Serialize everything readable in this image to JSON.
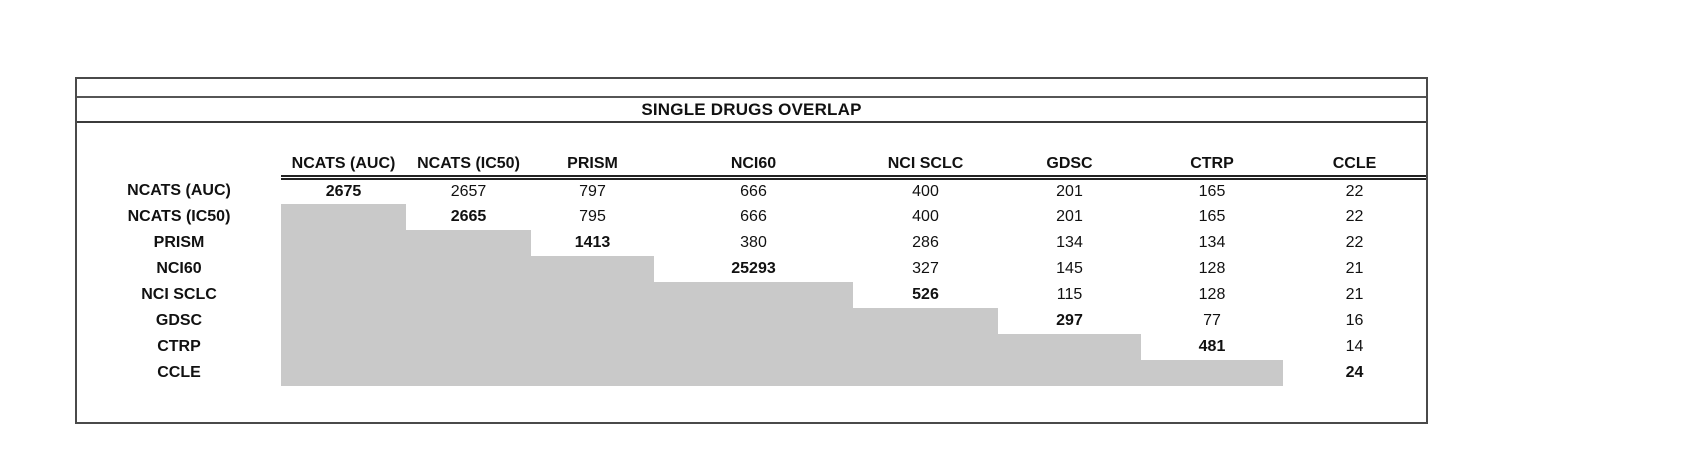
{
  "table": {
    "title": "SINGLE DRUGS OVERLAP",
    "columns": [
      "NCATS (AUC)",
      "NCATS (IC50)",
      "PRISM",
      "NCI60",
      "NCI SCLC",
      "GDSC",
      "CTRP",
      "CCLE"
    ],
    "rows": [
      "NCATS (AUC)",
      "NCATS (IC50)",
      "PRISM",
      "NCI60",
      "NCI SCLC",
      "GDSC",
      "CTRP",
      "CCLE"
    ],
    "matrix": [
      [
        2675,
        2657,
        797,
        666,
        400,
        201,
        165,
        22
      ],
      [
        null,
        2665,
        795,
        666,
        400,
        201,
        165,
        22
      ],
      [
        null,
        null,
        1413,
        380,
        286,
        134,
        134,
        22
      ],
      [
        null,
        null,
        null,
        25293,
        327,
        145,
        128,
        21
      ],
      [
        null,
        null,
        null,
        null,
        526,
        115,
        128,
        21
      ],
      [
        null,
        null,
        null,
        null,
        null,
        297,
        77,
        16
      ],
      [
        null,
        null,
        null,
        null,
        null,
        null,
        481,
        14
      ],
      [
        null,
        null,
        null,
        null,
        null,
        null,
        null,
        24
      ]
    ],
    "colors": {
      "shaded_cell": "#c9c9c9",
      "frame_border": "#4a4a4a",
      "text": "#111111"
    }
  },
  "chart_data": {
    "type": "table",
    "title": "SINGLE DRUGS OVERLAP",
    "columns": [
      "NCATS (AUC)",
      "NCATS (IC50)",
      "PRISM",
      "NCI60",
      "NCI SCLC",
      "GDSC",
      "CTRP",
      "CCLE"
    ],
    "rows": [
      "NCATS (AUC)",
      "NCATS (IC50)",
      "PRISM",
      "NCI60",
      "NCI SCLC",
      "GDSC",
      "CTRP",
      "CCLE"
    ],
    "values": [
      [
        2675,
        2657,
        797,
        666,
        400,
        201,
        165,
        22
      ],
      [
        null,
        2665,
        795,
        666,
        400,
        201,
        165,
        22
      ],
      [
        null,
        null,
        1413,
        380,
        286,
        134,
        134,
        22
      ],
      [
        null,
        null,
        null,
        25293,
        327,
        145,
        128,
        21
      ],
      [
        null,
        null,
        null,
        null,
        526,
        115,
        128,
        21
      ],
      [
        null,
        null,
        null,
        null,
        null,
        297,
        77,
        16
      ],
      [
        null,
        null,
        null,
        null,
        null,
        null,
        481,
        14
      ],
      [
        null,
        null,
        null,
        null,
        null,
        null,
        null,
        24
      ]
    ],
    "notes": "Upper-triangular pairwise overlap matrix; diagonal values are bold; cells below the diagonal are shaded gray with no value."
  }
}
